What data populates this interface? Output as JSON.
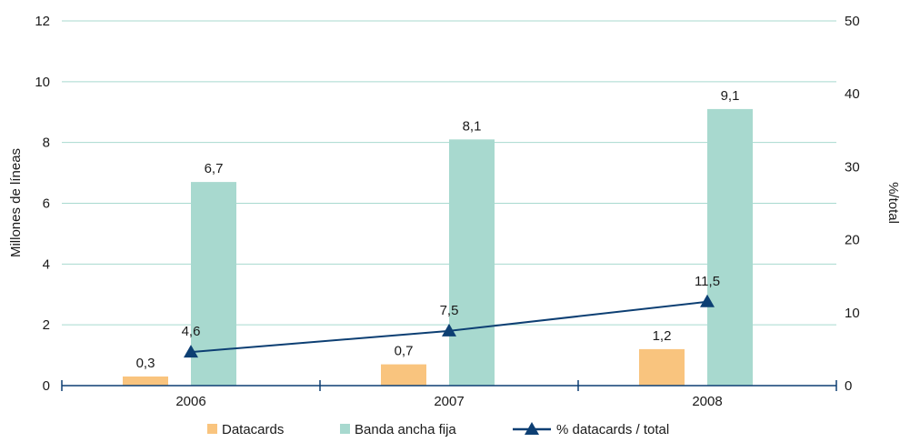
{
  "chart_data": {
    "type": "bar",
    "categories": [
      "2006",
      "2007",
      "2008"
    ],
    "series": [
      {
        "name": "Datacards",
        "type": "bar",
        "axis": "left",
        "values": [
          0.3,
          0.7,
          1.2
        ],
        "labels": [
          "0,3",
          "0,7",
          "1,2"
        ],
        "color": "#f9c47e"
      },
      {
        "name": "Banda ancha fija",
        "type": "bar",
        "axis": "left",
        "values": [
          6.7,
          8.1,
          9.1
        ],
        "labels": [
          "6,7",
          "8,1",
          "9,1"
        ],
        "color": "#a8d9cf"
      },
      {
        "name": "% datacards / total",
        "type": "line",
        "axis": "right",
        "values": [
          4.6,
          7.5,
          11.5
        ],
        "labels": [
          "4,6",
          "7,5",
          "11,5"
        ],
        "color": "#0d3f73"
      }
    ],
    "y_left": {
      "label": "Millones de líneas",
      "min": 0,
      "max": 12,
      "ticks": [
        "0",
        "2",
        "4",
        "6",
        "8",
        "10",
        "12"
      ]
    },
    "y_right": {
      "label": "%/total",
      "min": 0,
      "max": 50,
      "ticks": [
        "0",
        "10",
        "20",
        "30",
        "40",
        "50"
      ]
    },
    "grid": true,
    "gridline_color": "#a8d9cf",
    "legend_position": "bottom"
  }
}
